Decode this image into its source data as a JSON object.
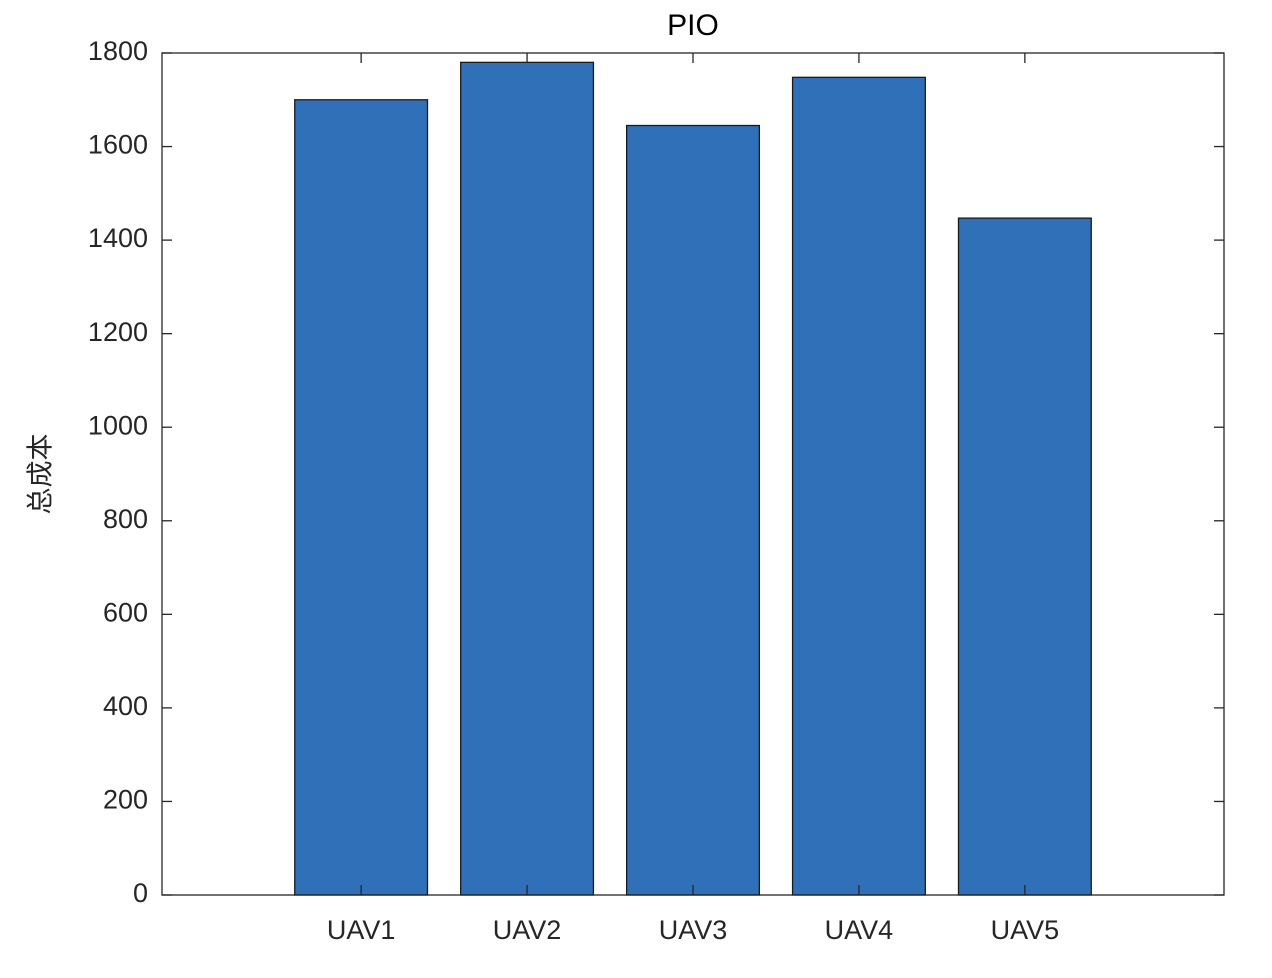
{
  "chart_data": {
    "type": "bar",
    "title": "PIO",
    "y_label": "总成本",
    "categories": [
      "UAV1",
      "UAV2",
      "UAV3",
      "UAV4",
      "UAV5"
    ],
    "values": [
      1700,
      1780,
      1645,
      1748,
      1447
    ],
    "color": "#3070b8",
    "ylim": [
      0,
      1800
    ],
    "yticks": [
      0,
      200,
      400,
      600,
      800,
      1000,
      1200,
      1400,
      1600,
      1800
    ],
    "grid": false
  }
}
